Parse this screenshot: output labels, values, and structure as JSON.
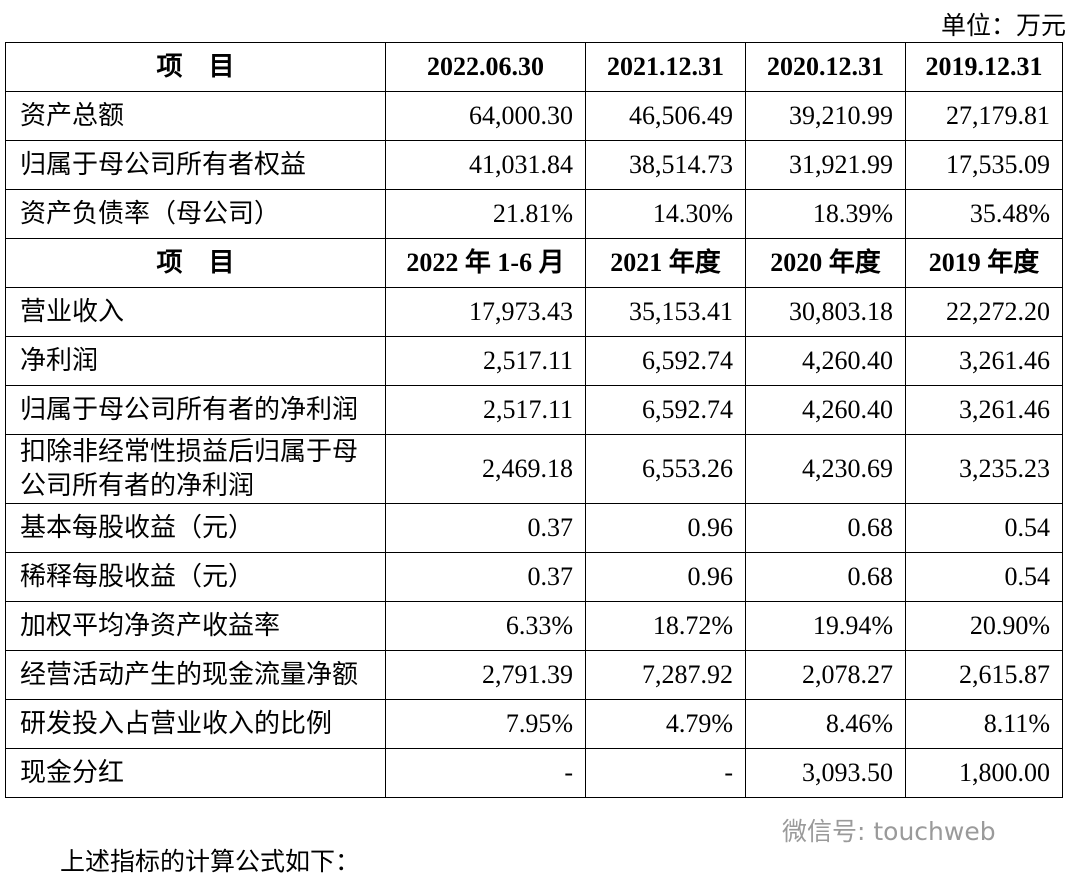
{
  "unit": "单位：万元",
  "table": {
    "sections": [
      {
        "header": [
          "项　目",
          "2022.06.30",
          "2021.12.31",
          "2020.12.31",
          "2019.12.31"
        ],
        "rows": [
          [
            "资产总额",
            "64,000.30",
            "46,506.49",
            "39,210.99",
            "27,179.81"
          ],
          [
            "归属于母公司所有者权益",
            "41,031.84",
            "38,514.73",
            "31,921.99",
            "17,535.09"
          ],
          [
            "资产负债率（母公司）",
            "21.81%",
            "14.30%",
            "18.39%",
            "35.48%"
          ]
        ]
      },
      {
        "header": [
          "项　目",
          "2022 年 1-6 月",
          "2021 年度",
          "2020 年度",
          "2019 年度"
        ],
        "rows": [
          [
            "营业收入",
            "17,973.43",
            "35,153.41",
            "30,803.18",
            "22,272.20"
          ],
          [
            "净利润",
            "2,517.11",
            "6,592.74",
            "4,260.40",
            "3,261.46"
          ],
          [
            "归属于母公司所有者的净利润",
            "2,517.11",
            "6,592.74",
            "4,260.40",
            "3,261.46"
          ],
          [
            "扣除非经常性损益后归属于母公司所有者的净利润",
            "2,469.18",
            "6,553.26",
            "4,230.69",
            "3,235.23"
          ],
          [
            "基本每股收益（元）",
            "0.37",
            "0.96",
            "0.68",
            "0.54"
          ],
          [
            "稀释每股收益（元）",
            "0.37",
            "0.96",
            "0.68",
            "0.54"
          ],
          [
            "加权平均净资产收益率",
            "6.33%",
            "18.72%",
            "19.94%",
            "20.90%"
          ],
          [
            "经营活动产生的现金流量净额",
            "2,791.39",
            "7,287.92",
            "2,078.27",
            "2,615.87"
          ],
          [
            "研发投入占营业收入的比例",
            "7.95%",
            "4.79%",
            "8.46%",
            "8.11%"
          ],
          [
            "现金分红",
            "-",
            "-",
            "3,093.50",
            "1,800.00"
          ]
        ]
      }
    ]
  },
  "footer": "上述指标的计算公式如下：",
  "watermark": "微信号: touchweb"
}
